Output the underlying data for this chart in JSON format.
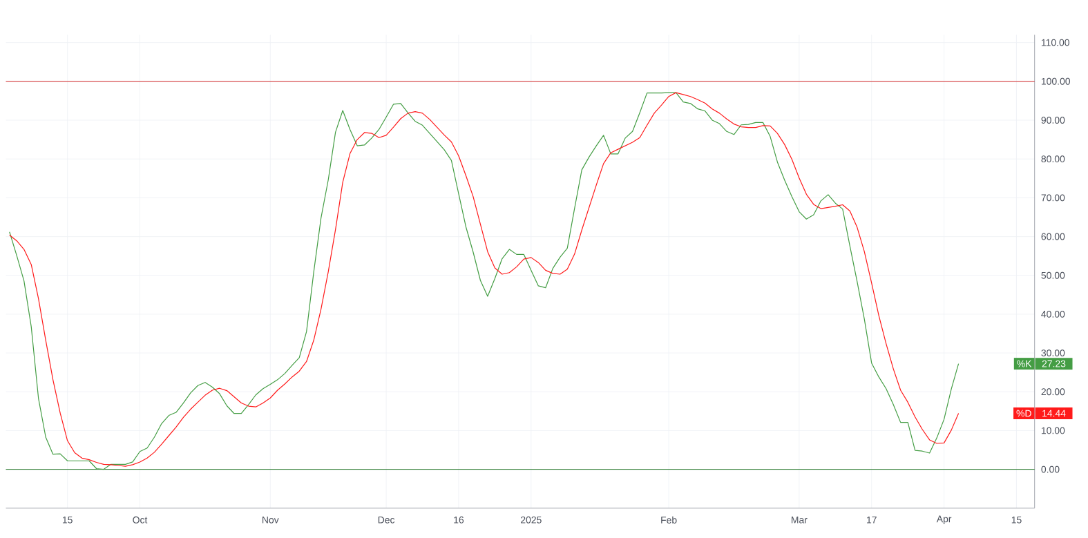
{
  "chart_data": {
    "type": "line",
    "categories": [
      null,
      null,
      null,
      null,
      null,
      null,
      null,
      null,
      "15",
      null,
      null,
      null,
      null,
      null,
      null,
      null,
      null,
      null,
      "Oct",
      null,
      null,
      null,
      null,
      null,
      null,
      null,
      null,
      null,
      null,
      null,
      null,
      null,
      null,
      null,
      null,
      null,
      "Nov",
      null,
      null,
      null,
      null,
      null,
      null,
      null,
      null,
      null,
      null,
      null,
      null,
      null,
      null,
      null,
      "Dec",
      null,
      null,
      null,
      null,
      null,
      null,
      null,
      null,
      null,
      "16",
      null,
      null,
      null,
      null,
      null,
      null,
      null,
      null,
      null,
      "2025",
      null,
      null,
      null,
      null,
      null,
      null,
      null,
      null,
      null,
      null,
      null,
      null,
      null,
      null,
      null,
      null,
      null,
      null,
      "Feb",
      null,
      null,
      null,
      null,
      null,
      null,
      null,
      null,
      null,
      null,
      null,
      null,
      null,
      null,
      null,
      null,
      null,
      "Mar",
      null,
      null,
      null,
      null,
      null,
      null,
      null,
      null,
      null,
      "17",
      null,
      null,
      null,
      null,
      null,
      null,
      null,
      null,
      null,
      "Apr",
      null,
      null,
      null,
      null,
      null,
      null,
      null,
      null,
      null,
      "15",
      null,
      null
    ],
    "series": [
      {
        "name": "%K",
        "color": "#449d44",
        "values": [
          61.2,
          55.1,
          48.6,
          36.8,
          18.3,
          8.3,
          3.9,
          4.0,
          2.2,
          2.2,
          2.2,
          2.2,
          0.2,
          0.0,
          1.3,
          1.3,
          1.3,
          1.9,
          4.6,
          5.5,
          8.3,
          11.8,
          13.9,
          14.7,
          17.1,
          19.7,
          21.6,
          22.4,
          21.2,
          19.5,
          16.4,
          14.4,
          14.4,
          16.7,
          19.2,
          20.8,
          21.9,
          23.1,
          24.7,
          26.8,
          28.8,
          35.5,
          50.9,
          64.8,
          74.6,
          86.9,
          92.5,
          87.6,
          83.4,
          83.6,
          85.4,
          87.6,
          90.8,
          94.1,
          94.3,
          91.9,
          89.7,
          88.7,
          86.6,
          84.5,
          82.4,
          79.6,
          71.0,
          62.5,
          56.0,
          48.7,
          44.6,
          49.2,
          54.3,
          56.7,
          55.4,
          55.4,
          51.3,
          47.3,
          46.8,
          51.8,
          54.7,
          57.0,
          67.3,
          77.2,
          80.5,
          83.4,
          86.1,
          81.3,
          81.3,
          85.4,
          87.1,
          91.9,
          97.0,
          97.0,
          97.0,
          97.1,
          97.1,
          94.7,
          94.3,
          92.9,
          92.4,
          90.0,
          89.1,
          87.1,
          86.3,
          88.8,
          88.9,
          89.4,
          89.4,
          85.8,
          79.2,
          74.5,
          70.3,
          66.4,
          64.5,
          65.6,
          69.2,
          70.8,
          68.6,
          67.1,
          57.6,
          48.4,
          38.7,
          27.4,
          23.8,
          20.8,
          16.7,
          12.1,
          12.1,
          4.9,
          4.7,
          4.2,
          8.1,
          12.9,
          20.7,
          27.23,
          null,
          null,
          null,
          null,
          null,
          null,
          null,
          null,
          null,
          null
        ]
      },
      {
        "name": "%D",
        "color": "#ff1a1a",
        "values": [
          60.4,
          58.9,
          56.7,
          52.8,
          44.0,
          33.3,
          23.1,
          14.5,
          7.4,
          4.3,
          2.9,
          2.5,
          1.8,
          1.3,
          1.2,
          1.0,
          0.8,
          1.2,
          1.9,
          2.9,
          4.4,
          6.5,
          8.7,
          10.9,
          13.4,
          15.5,
          17.3,
          19.1,
          20.4,
          20.9,
          20.3,
          18.7,
          17.1,
          16.3,
          16.1,
          17.1,
          18.4,
          20.4,
          22.0,
          23.8,
          25.3,
          27.8,
          33.3,
          41.3,
          50.9,
          61.8,
          74.0,
          81.4,
          85.0,
          86.8,
          86.6,
          85.5,
          86.1,
          88.2,
          90.4,
          91.8,
          92.2,
          91.8,
          90.2,
          88.2,
          86.2,
          84.4,
          80.8,
          75.7,
          70.3,
          63.2,
          56.1,
          51.9,
          50.3,
          50.7,
          52.2,
          54.2,
          54.6,
          53.3,
          51.3,
          50.5,
          50.3,
          51.6,
          55.5,
          61.7,
          67.5,
          73.3,
          78.8,
          81.6,
          82.5,
          83.4,
          84.3,
          85.5,
          88.7,
          91.8,
          93.9,
          96.1,
          97.1,
          96.6,
          96.1,
          95.3,
          94.4,
          92.9,
          91.8,
          90.3,
          89.0,
          88.3,
          88.1,
          88.1,
          88.6,
          88.5,
          86.6,
          83.7,
          79.9,
          75.1,
          70.9,
          68.3,
          67.2,
          67.5,
          67.8,
          68.2,
          66.6,
          62.4,
          56.1,
          48.0,
          39.6,
          32.4,
          25.9,
          20.4,
          17.3,
          13.5,
          10.3,
          7.6,
          6.7,
          6.8,
          10.1,
          14.44,
          null,
          null,
          null,
          null,
          null,
          null,
          null,
          null,
          null,
          null
        ]
      }
    ],
    "annotations": [
      "27.23",
      "14.44"
    ],
    "ylim": [
      -10,
      112
    ],
    "yticks": [
      {
        "value": 0,
        "label": "0.00"
      },
      {
        "value": 10,
        "label": "10.00"
      },
      {
        "value": 20,
        "label": "20.00"
      },
      {
        "value": 30,
        "label": "30.00"
      },
      {
        "value": 40,
        "label": "40.00"
      },
      {
        "value": 50,
        "label": "50.00"
      },
      {
        "value": 60,
        "label": "60.00"
      },
      {
        "value": 70,
        "label": "70.00"
      },
      {
        "value": 80,
        "label": "80.00"
      },
      {
        "value": 90,
        "label": "90.00"
      },
      {
        "value": 100,
        "label": "100.00"
      },
      {
        "value": 110,
        "label": "110.00"
      }
    ],
    "ref_lines": [
      {
        "axis": "y",
        "value": 100,
        "color": "#d32626"
      },
      {
        "axis": "y",
        "value": 0,
        "color": "#2e7d32"
      }
    ],
    "legend": "right",
    "grid": true
  }
}
